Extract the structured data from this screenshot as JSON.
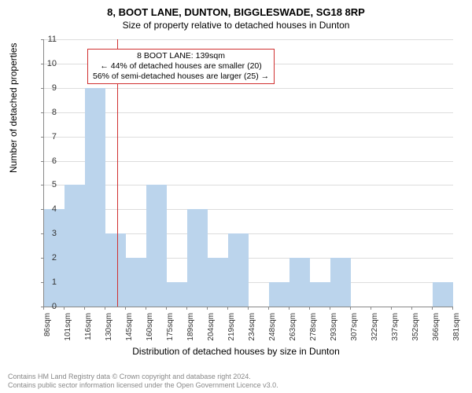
{
  "title": "8, BOOT LANE, DUNTON, BIGGLESWADE, SG18 8RP",
  "subtitle": "Size of property relative to detached houses in Dunton",
  "ylabel": "Number of detached properties",
  "xaxis_title": "Distribution of detached houses by size in Dunton",
  "footer_line1": "Contains HM Land Registry data © Crown copyright and database right 2024.",
  "footer_line2": "Contains public sector information licensed under the Open Government Licence v3.0.",
  "callout": {
    "line1": "8 BOOT LANE: 139sqm",
    "line2": "← 44% of detached houses are smaller (20)",
    "line3": "56% of semi-detached houses are larger (25) →"
  },
  "chart": {
    "type": "histogram",
    "ylim": [
      0,
      11
    ],
    "ytick_step": 1,
    "grid_color": "#dddddd",
    "bar_color": "#bbd4ec",
    "background_color": "#ffffff",
    "refline_color": "#d03030",
    "refline_x": 139,
    "x_start": 86,
    "x_step": 14.76,
    "x_count": 21,
    "x_unit": "sqm",
    "xtick_labels": [
      "86sqm",
      "101sqm",
      "116sqm",
      "130sqm",
      "145sqm",
      "160sqm",
      "175sqm",
      "189sqm",
      "204sqm",
      "219sqm",
      "234sqm",
      "248sqm",
      "263sqm",
      "278sqm",
      "293sqm",
      "307sqm",
      "322sqm",
      "337sqm",
      "352sqm",
      "366sqm",
      "381sqm"
    ],
    "values": [
      4,
      5,
      9,
      3,
      2,
      5,
      1,
      4,
      2,
      3,
      0,
      1,
      2,
      1,
      2,
      0,
      0,
      0,
      0,
      1
    ],
    "title_fontsize": 13,
    "subtitle_fontsize": 12,
    "label_fontsize": 12,
    "tick_fontsize": 11,
    "xtick_fontsize": 10,
    "footer_fontsize": 9,
    "callout_fontsize": 10.5
  }
}
